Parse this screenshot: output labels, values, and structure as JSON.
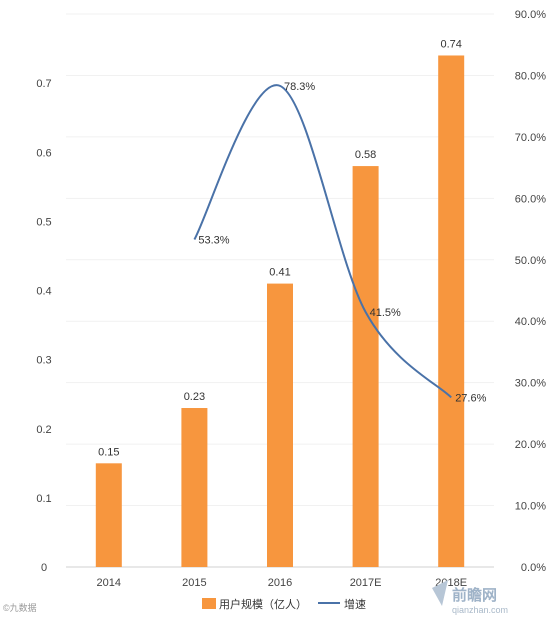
{
  "chart_data": {
    "type": "bar",
    "categories": [
      "2014",
      "2015",
      "2016",
      "2017E",
      "2018E"
    ],
    "series": [
      {
        "name": "用户规模（亿人）",
        "type": "bar",
        "axis": "left",
        "color": "#f7963e",
        "values": [
          0.15,
          0.23,
          0.41,
          0.58,
          0.74
        ],
        "labels": [
          "0.15",
          "0.23",
          "0.41",
          "0.58",
          "0.74"
        ]
      },
      {
        "name": "增速",
        "type": "line",
        "axis": "right",
        "color": "#4a72a8",
        "values": [
          null,
          53.3,
          78.3,
          41.5,
          27.6
        ],
        "labels": [
          "",
          "53.3%",
          "78.3%",
          "41.5%",
          "27.6%"
        ]
      }
    ],
    "y_left": {
      "ylim": [
        0,
        0.8
      ],
      "ticks": [
        "0",
        "0.1",
        "0.2",
        "0.3",
        "0.4",
        "0.5",
        "0.6",
        "0.7"
      ]
    },
    "y_right": {
      "ylim": [
        0,
        90
      ],
      "ticks": [
        "0.0%",
        "10.0%",
        "20.0%",
        "30.0%",
        "40.0%",
        "50.0%",
        "60.0%",
        "70.0%",
        "80.0%",
        "90.0%"
      ]
    },
    "legend": {
      "placement": "bottom",
      "items": [
        "用户规模（亿人）",
        "增速"
      ]
    }
  },
  "watermarks": {
    "left": "©九数据",
    "brand": "前瞻网",
    "brand_url": "qianzhan.com"
  }
}
